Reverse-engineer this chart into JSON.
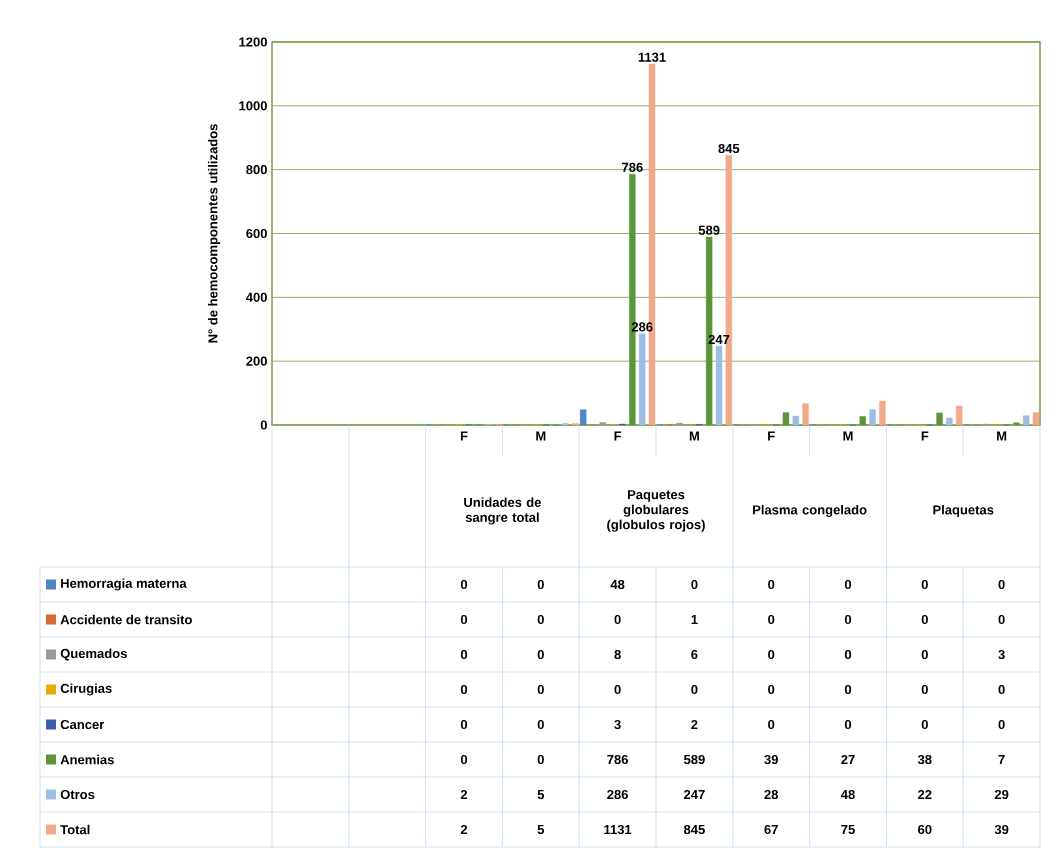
{
  "chart_data": {
    "type": "bar",
    "ylabel": "N° de hemocomponentes utilizados",
    "categories": [
      null,
      null,
      "F",
      "M",
      "F",
      "M",
      "F",
      "M",
      "F",
      "M"
    ],
    "annotations": [
      "Unidades de sangre total",
      "Paquetes globulares (globulos rojos)",
      "Plasma congelado",
      "Plaquetas",
      {
        "text": "786",
        "y": 786
      },
      {
        "text": "589",
        "y": 589
      },
      {
        "text": "286",
        "y": 286
      },
      {
        "text": "247",
        "y": 247
      },
      {
        "text": "1131",
        "y": 1131
      },
      {
        "text": "845",
        "y": 845
      }
    ],
    "series": [
      {
        "name": "Hemorragia materna",
        "color": "#4f86bf",
        "values": [
          null,
          null,
          0,
          0,
          48,
          0,
          0,
          0,
          0,
          0
        ]
      },
      {
        "name": "Accidente de transito",
        "color": "#d86b2a",
        "values": [
          null,
          null,
          0,
          0,
          0,
          1,
          0,
          0,
          0,
          0
        ]
      },
      {
        "name": "Quemados",
        "color": "#9a9a9a",
        "values": [
          null,
          null,
          0,
          0,
          8,
          6,
          0,
          0,
          0,
          3
        ]
      },
      {
        "name": "Cirugias",
        "color": "#e6ac00",
        "values": [
          null,
          null,
          0,
          0,
          0,
          0,
          0,
          0,
          0,
          0
        ]
      },
      {
        "name": "Cancer",
        "color": "#3a60aa",
        "values": [
          null,
          null,
          0,
          0,
          3,
          2,
          0,
          0,
          0,
          0
        ]
      },
      {
        "name": "Anemias",
        "color": "#5c953a",
        "values": [
          null,
          null,
          0,
          0,
          786,
          589,
          39,
          27,
          38,
          7
        ]
      },
      {
        "name": "Otros",
        "color": "#9dbde3",
        "values": [
          null,
          null,
          2,
          5,
          286,
          247,
          28,
          48,
          22,
          29
        ]
      },
      {
        "name": "Total",
        "color": "#f2a98a",
        "values": [
          null,
          null,
          2,
          5,
          1131,
          845,
          67,
          75,
          60,
          39
        ]
      }
    ],
    "ylim": [
      0,
      1200
    ],
    "yticks": [
      0,
      200,
      400,
      600,
      800,
      1000,
      1200
    ],
    "grid": "y",
    "legend": "left",
    "data_labels": true
  }
}
